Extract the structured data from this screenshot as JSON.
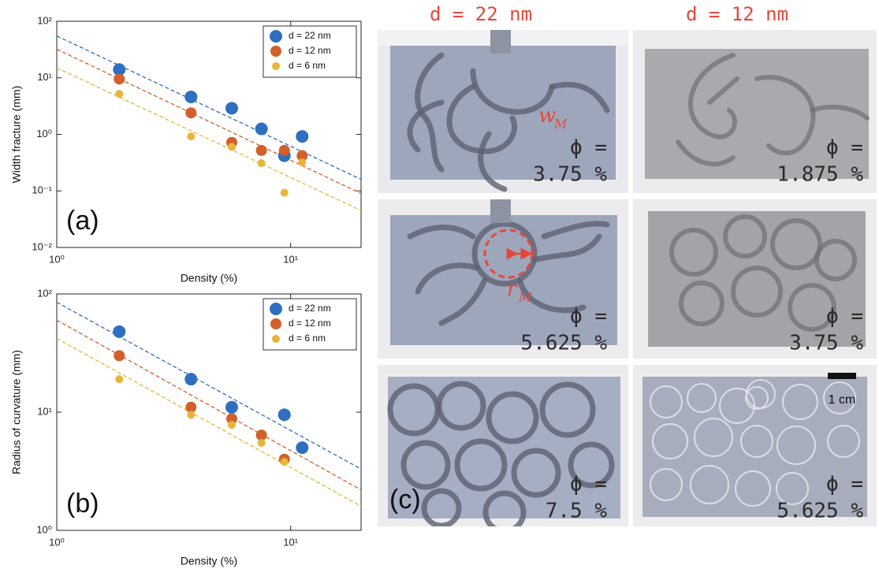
{
  "chart_data": [
    {
      "type": "scatter",
      "panel_label": "(a)",
      "x_label": "Density (%)",
      "y_label": "Width fracture (mm)",
      "xlim": [
        1,
        20
      ],
      "ylim": [
        0.01,
        100
      ],
      "log_x": true,
      "log_y": true,
      "legend": "northeast",
      "xticks": [
        {
          "value": 1,
          "label": "10⁰"
        },
        {
          "value": 10,
          "label": "10¹"
        }
      ],
      "yticks": [
        {
          "value": 0.01,
          "label": "10⁻²"
        },
        {
          "value": 0.1,
          "label": "10⁻¹"
        },
        {
          "value": 1,
          "label": "10⁰"
        },
        {
          "value": 10,
          "label": "10¹"
        },
        {
          "value": 100,
          "label": "10²"
        }
      ],
      "series": [
        {
          "name": "d = 22 nm",
          "color": "#2f6fbf",
          "x": [
            1.85,
            3.75,
            5.6,
            7.5,
            9.4,
            11.2
          ],
          "values": [
            14,
            4.6,
            2.9,
            1.25,
            0.42,
            0.92
          ]
        },
        {
          "name": "d = 12 nm",
          "color": "#d2602b",
          "x": [
            1.85,
            3.75,
            5.6,
            7.5,
            9.4,
            11.2
          ],
          "values": [
            9.5,
            2.4,
            0.72,
            0.52,
            0.52,
            0.42
          ]
        },
        {
          "name": "d = 6 nm",
          "color": "#e8b53a",
          "x": [
            1.85,
            3.75,
            5.6,
            7.5,
            9.4,
            11.2
          ],
          "values": [
            5.2,
            0.92,
            0.6,
            0.31,
            0.093,
            0.32
          ]
        }
      ],
      "fits": [
        {
          "color": "#2f6fbf",
          "x": [
            1,
            20
          ],
          "values": [
            55,
            0.16
          ]
        },
        {
          "color": "#d2602b",
          "x": [
            1,
            20
          ],
          "values": [
            32,
            0.09
          ]
        },
        {
          "color": "#e8b53a",
          "x": [
            1,
            20
          ],
          "values": [
            15,
            0.045
          ]
        }
      ]
    },
    {
      "type": "scatter",
      "panel_label": "(b)",
      "x_label": "Density (%)",
      "y_label": "Radius of curvature (mm)",
      "xlim": [
        1,
        20
      ],
      "ylim": [
        1,
        100
      ],
      "log_x": true,
      "log_y": true,
      "legend": "northeast",
      "xticks": [
        {
          "value": 1,
          "label": "10⁰"
        },
        {
          "value": 10,
          "label": "10¹"
        }
      ],
      "yticks": [
        {
          "value": 1,
          "label": "10⁰"
        },
        {
          "value": 10,
          "label": "10¹"
        },
        {
          "value": 100,
          "label": "10²"
        }
      ],
      "series": [
        {
          "name": "d = 22 nm",
          "color": "#2f6fbf",
          "x": [
            1.85,
            3.75,
            5.6,
            9.4,
            11.2
          ],
          "values": [
            48,
            19,
            11,
            9.5,
            5.0
          ]
        },
        {
          "name": "d = 12 nm",
          "color": "#d2602b",
          "x": [
            1.85,
            3.75,
            5.6,
            7.5,
            9.4
          ],
          "values": [
            30,
            11,
            8.8,
            6.4,
            4.0
          ]
        },
        {
          "name": "d = 6 nm",
          "color": "#e8b53a",
          "x": [
            1.85,
            3.75,
            5.6,
            7.5,
            9.4
          ],
          "values": [
            19,
            9.5,
            7.8,
            5.5,
            3.8
          ]
        }
      ],
      "fits": [
        {
          "color": "#2f6fbf",
          "x": [
            1,
            20
          ],
          "values": [
            85,
            3.3
          ]
        },
        {
          "color": "#d2602b",
          "x": [
            1,
            20
          ],
          "values": [
            60,
            2.2
          ]
        },
        {
          "color": "#e8b53a",
          "x": [
            1,
            20
          ],
          "values": [
            42,
            1.6
          ]
        }
      ]
    }
  ],
  "panel_c": {
    "label": "(c)",
    "columns": [
      "d = 22 nm",
      "d = 12 nm"
    ],
    "phi_symbol": "ϕ =",
    "phi": [
      "3.75 %",
      "1.875 %",
      "5.625 %",
      "3.75 %",
      "7.5 %",
      "5.625 %"
    ],
    "width_label": {
      "main": "w",
      "sub": "M"
    },
    "radius_label": {
      "main": "r",
      "sub": "M"
    },
    "scale_bar": "1 cm"
  }
}
